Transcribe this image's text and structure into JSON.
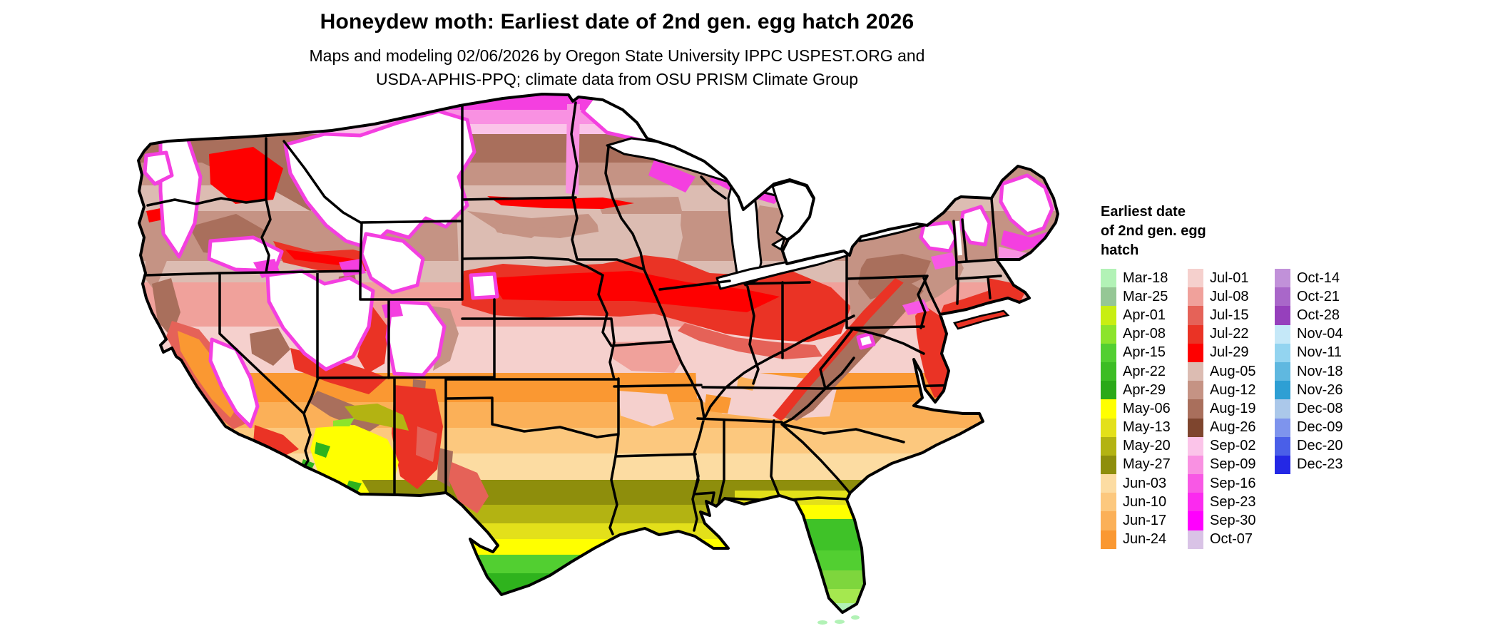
{
  "header": {
    "title": "Honeydew moth: Earliest date of 2nd gen. egg hatch 2026",
    "subtitle_line1": "Maps and modeling 02/06/2026 by Oregon State University IPPC USPEST.ORG and",
    "subtitle_line2": "USDA-APHIS-PPQ; climate data from OSU PRISM Climate Group"
  },
  "map": {
    "region": "Continental United States",
    "type": "raster choropleth",
    "no_data_color": "#ffffff"
  },
  "legend": {
    "title_lines": [
      "Earliest date",
      "of 2nd gen. egg",
      "hatch"
    ],
    "columns": [
      {
        "entries": [
          {
            "label": "Mar-18",
            "color": "#b2f2b6"
          },
          {
            "label": "Mar-25",
            "color": "#95c795"
          },
          {
            "label": "Apr-01",
            "color": "#c8ee12"
          },
          {
            "label": "Apr-08",
            "color": "#8ce42b"
          },
          {
            "label": "Apr-15",
            "color": "#52cf31"
          },
          {
            "label": "Apr-22",
            "color": "#3cbd24"
          },
          {
            "label": "Apr-29",
            "color": "#2aa918"
          },
          {
            "label": "May-06",
            "color": "#ffff00"
          },
          {
            "label": "May-13",
            "color": "#e3e01a"
          },
          {
            "label": "May-20",
            "color": "#b3b312"
          },
          {
            "label": "May-27",
            "color": "#8e8e0c"
          },
          {
            "label": "Jun-03",
            "color": "#fcdca2"
          },
          {
            "label": "Jun-10",
            "color": "#fcc87e"
          },
          {
            "label": "Jun-17",
            "color": "#fbb058"
          },
          {
            "label": "Jun-24",
            "color": "#fa9832"
          }
        ]
      },
      {
        "entries": [
          {
            "label": "Jul-01",
            "color": "#f5d0cd"
          },
          {
            "label": "Jul-08",
            "color": "#f0a19b"
          },
          {
            "label": "Jul-15",
            "color": "#e56258"
          },
          {
            "label": "Jul-22",
            "color": "#ea3325"
          },
          {
            "label": "Jul-29",
            "color": "#fe0000"
          },
          {
            "label": "Aug-05",
            "color": "#dcbcb2"
          },
          {
            "label": "Aug-12",
            "color": "#c59384"
          },
          {
            "label": "Aug-19",
            "color": "#a96f5c"
          },
          {
            "label": "Aug-26",
            "color": "#7e452e"
          },
          {
            "label": "Sep-02",
            "color": "#fbc4e9"
          },
          {
            "label": "Sep-09",
            "color": "#f991e2"
          },
          {
            "label": "Sep-16",
            "color": "#f858e5"
          },
          {
            "label": "Sep-23",
            "color": "#fb2aef"
          },
          {
            "label": "Sep-30",
            "color": "#ff00fe"
          },
          {
            "label": "Oct-07",
            "color": "#d9c3e6"
          }
        ]
      },
      {
        "entries": [
          {
            "label": "Oct-14",
            "color": "#c191d9"
          },
          {
            "label": "Oct-21",
            "color": "#a967c9"
          },
          {
            "label": "Oct-28",
            "color": "#9640bc"
          },
          {
            "label": "Nov-04",
            "color": "#c5e8f8"
          },
          {
            "label": "Nov-11",
            "color": "#93d4f0"
          },
          {
            "label": "Nov-18",
            "color": "#5fb8e0"
          },
          {
            "label": "Nov-26",
            "color": "#2e9fd4"
          },
          {
            "label": "Dec-08",
            "color": "#abc8ea"
          },
          {
            "label": "Dec-09",
            "color": "#7e94ed"
          },
          {
            "label": "Dec-20",
            "color": "#4a5fe8"
          },
          {
            "label": "Dec-23",
            "color": "#2428e5"
          }
        ]
      }
    ]
  }
}
